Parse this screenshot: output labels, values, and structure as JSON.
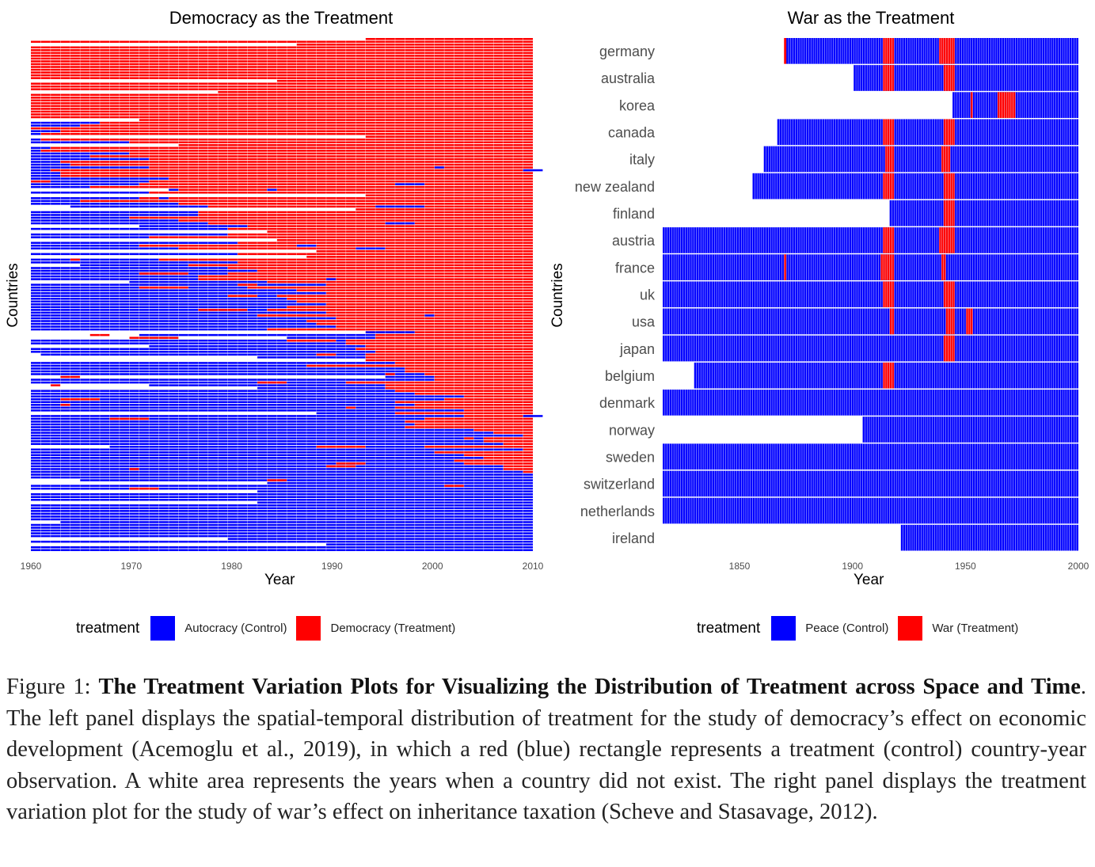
{
  "chart_data": [
    {
      "type": "heatmap",
      "title": "Democracy as the Treatment",
      "xlabel": "Year",
      "ylabel": "Countries",
      "xlim": [
        1960,
        2010
      ],
      "x_ticks": [
        1960,
        1970,
        1980,
        1990,
        2000,
        2010
      ],
      "n_countries": 184,
      "legend_title": "treatment",
      "legend": [
        {
          "label": "Autocracy (Control)",
          "color": "#0000ff"
        },
        {
          "label": "Democracy (Treatment)",
          "color": "#ff0000"
        }
      ],
      "legend_position": "bottom",
      "missing_color": "#ffffff"
    },
    {
      "type": "heatmap",
      "title": "War as the Treatment",
      "xlabel": "Year",
      "ylabel": "Countries",
      "xlim": [
        1816,
        2000
      ],
      "x_ticks": [
        1850,
        1900,
        1950,
        2000
      ],
      "legend_title": "treatment",
      "legend": [
        {
          "label": "Peace (Control)",
          "color": "#0000ff"
        },
        {
          "label": "War (Treatment)",
          "color": "#ff0000"
        }
      ],
      "legend_position": "bottom",
      "countries": [
        {
          "name": "germany",
          "start": 1871,
          "war": [
            1870,
            1914,
            1915,
            1916,
            1917,
            1918,
            1939,
            1940,
            1941,
            1942,
            1943,
            1944,
            1945
          ]
        },
        {
          "name": "australia",
          "start": 1901,
          "war": [
            1914,
            1915,
            1916,
            1917,
            1918,
            1941,
            1942,
            1943,
            1944,
            1945
          ]
        },
        {
          "name": "korea",
          "start": 1945,
          "war": [
            1953,
            1965,
            1966,
            1967,
            1968,
            1969,
            1970,
            1971,
            1972
          ]
        },
        {
          "name": "canada",
          "start": 1867,
          "war": [
            1914,
            1915,
            1916,
            1917,
            1918,
            1941,
            1942,
            1943,
            1944,
            1945
          ]
        },
        {
          "name": "italy",
          "start": 1861,
          "war": [
            1915,
            1916,
            1917,
            1918,
            1940,
            1941,
            1942,
            1943
          ]
        },
        {
          "name": "new zealand",
          "start": 1856,
          "war": [
            1914,
            1915,
            1916,
            1917,
            1918,
            1941,
            1942,
            1943,
            1944,
            1945
          ]
        },
        {
          "name": "finland",
          "start": 1917,
          "war": [
            1941,
            1942,
            1943,
            1944,
            1945
          ]
        },
        {
          "name": "austria",
          "start": 1816,
          "war": [
            1914,
            1915,
            1916,
            1917,
            1918,
            1939,
            1940,
            1941,
            1942,
            1943,
            1944,
            1945
          ]
        },
        {
          "name": "france",
          "start": 1816,
          "war": [
            1870,
            1913,
            1914,
            1915,
            1916,
            1917,
            1918,
            1940,
            1941
          ]
        },
        {
          "name": "uk",
          "start": 1816,
          "war": [
            1914,
            1915,
            1916,
            1917,
            1918,
            1941,
            1942,
            1943,
            1944,
            1945
          ]
        },
        {
          "name": "usa",
          "start": 1816,
          "war": [
            1917,
            1918,
            1942,
            1943,
            1944,
            1945,
            1951,
            1952,
            1953
          ]
        },
        {
          "name": "japan",
          "start": 1816,
          "war": [
            1941,
            1942,
            1943,
            1944,
            1945
          ]
        },
        {
          "name": "belgium",
          "start": 1830,
          "war": [
            1914,
            1915,
            1916,
            1917,
            1918
          ]
        },
        {
          "name": "denmark",
          "start": 1816,
          "war": []
        },
        {
          "name": "norway",
          "start": 1905,
          "war": []
        },
        {
          "name": "sweden",
          "start": 1816,
          "war": []
        },
        {
          "name": "switzerland",
          "start": 1816,
          "war": []
        },
        {
          "name": "netherlands",
          "start": 1816,
          "war": []
        },
        {
          "name": "ireland",
          "start": 1922,
          "war": []
        }
      ]
    }
  ],
  "caption": {
    "label": "Figure 1: ",
    "bold": "The Treatment Variation Plots for Visualizing the Distribution of Treatment across Space and Time",
    "text": ". The left panel displays the spatial-temporal distribution of treatment for the study of democracy’s effect on economic development (Acemoglu et al., 2019), in which a red (blue) rectangle represents a treatment (control) country-year observation.  A white area represents the years when a country did not exist. The right panel displays the treatment variation plot for the study of war’s effect on inheritance taxation (Scheve and Stasavage, 2012)."
  }
}
